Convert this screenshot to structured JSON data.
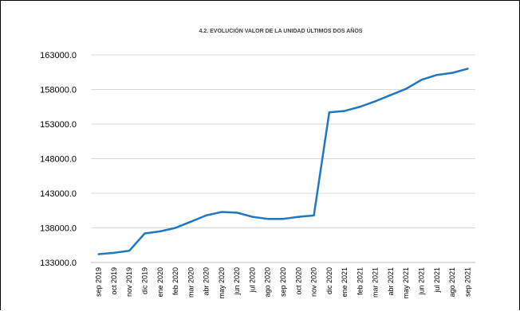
{
  "chart_data": {
    "type": "line",
    "title": "4.2. EVOLUCIÓN VALOR DE LA UNIDAD ÚLTIMOS DOS AÑOS",
    "xlabel": "",
    "ylabel": "",
    "categories": [
      "sep 2019",
      "oct 2019",
      "nov 2019",
      "dic 2019",
      "ene 2020",
      "feb 2020",
      "mar 2020",
      "abr 2020",
      "may 2020",
      "jun 2020",
      "jul 2020",
      "ago 2020",
      "sep 2020",
      "oct 2020",
      "nov 2020",
      "dic 2020",
      "ene 2021",
      "feb 2021",
      "mar 2021",
      "abr 2021",
      "may 2021",
      "jun 2021",
      "jul 2021",
      "ago 2021",
      "sep 2021"
    ],
    "series": [
      {
        "name": "",
        "color": "#1f77c4",
        "values": [
          134200,
          134400,
          134700,
          137200,
          137500,
          138000,
          138900,
          139800,
          140300,
          140200,
          139600,
          139300,
          139300,
          139600,
          139800,
          154700,
          154900,
          155500,
          156300,
          157200,
          158100,
          159400,
          160100,
          160400,
          161000
        ]
      }
    ],
    "yticks": [
      "163000.0",
      "158000.0",
      "153000.0",
      "148000.0",
      "143000.0",
      "138000.0",
      "133000.0"
    ],
    "ylim": [
      133000,
      163000
    ],
    "grid": true,
    "legend": "none"
  }
}
